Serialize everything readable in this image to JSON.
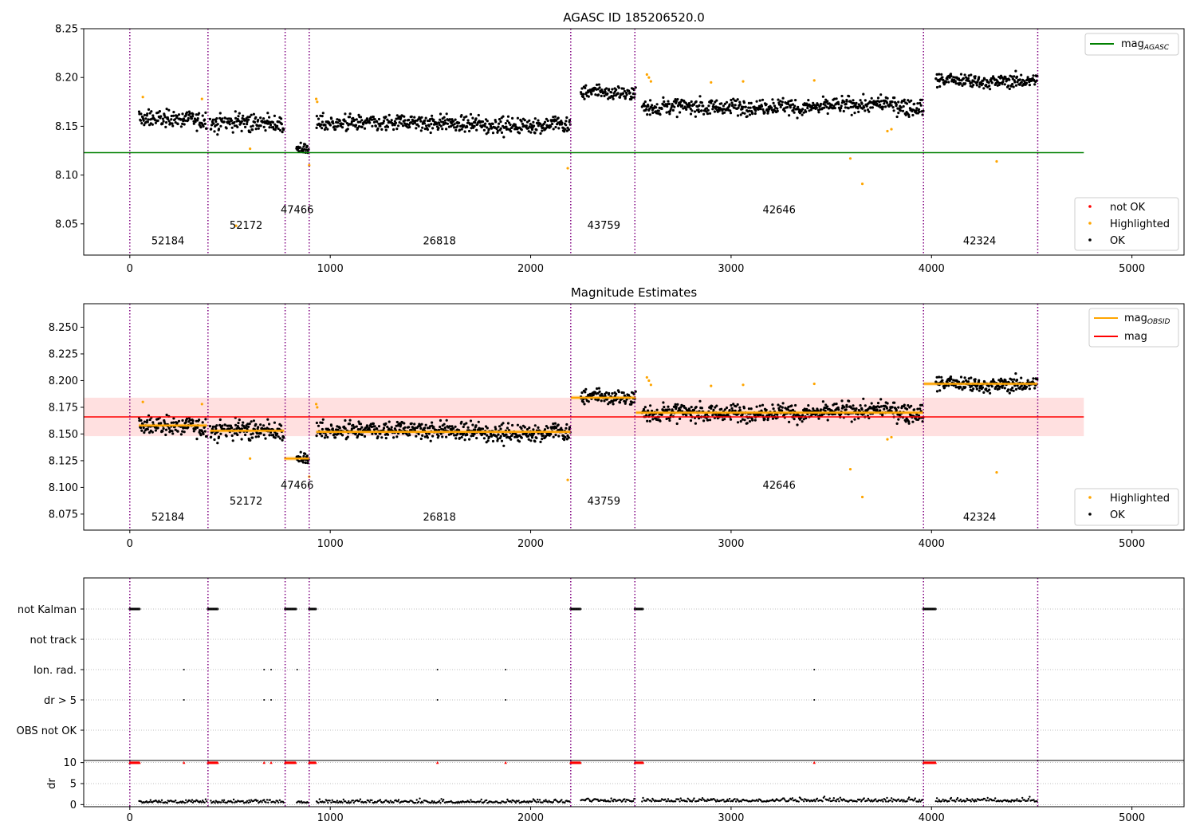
{
  "chart_data": [
    {
      "type": "scatter",
      "title": "AGASC ID 185206520.0",
      "xlim": [
        -230,
        5260
      ],
      "ylim": [
        8.018,
        8.25
      ],
      "xticks": [
        0,
        1000,
        2000,
        3000,
        4000,
        5000
      ],
      "yticks": [
        8.05,
        8.1,
        8.15,
        8.2,
        8.25
      ],
      "ytick_labels": [
        "8.05",
        "8.10",
        "8.15",
        "8.20",
        "8.25"
      ],
      "reference_lines": [
        {
          "name": "mag_AGASC",
          "y": 8.123,
          "x": [
            -230,
            4760
          ],
          "color": "#008000"
        }
      ],
      "legend_top": {
        "label": "mag",
        "sub": "AGASC"
      },
      "legend_bottom": [
        {
          "label": "not OK",
          "color": "#ff0000"
        },
        {
          "label": "Highlighted",
          "color": "#ffa500"
        },
        {
          "label": "OK",
          "color": "#000000"
        }
      ],
      "obsid_labels": [
        {
          "text": "52184",
          "x": 190,
          "y": 8.029
        },
        {
          "text": "52172",
          "x": 580,
          "y": 8.045
        },
        {
          "text": "47466",
          "x": 835,
          "y": 8.061
        },
        {
          "text": "26818",
          "x": 1545,
          "y": 8.029
        },
        {
          "text": "43759",
          "x": 2365,
          "y": 8.045
        },
        {
          "text": "42646",
          "x": 3240,
          "y": 8.061
        },
        {
          "text": "42324",
          "x": 4240,
          "y": 8.029
        }
      ],
      "obs_boundaries": [
        0,
        390,
        775,
        895,
        2200,
        2520,
        3960,
        4530
      ],
      "segments": [
        {
          "x": [
            45,
            385
          ],
          "mean": 8.158,
          "spread": 0.007
        },
        {
          "x": [
            400,
            770
          ],
          "mean": 8.153,
          "spread": 0.008
        },
        {
          "x": [
            830,
            895
          ],
          "mean": 8.128,
          "spread": 0.005
        },
        {
          "x": [
            930,
            2200
          ],
          "mean": 8.152,
          "spread": 0.007
        },
        {
          "x": [
            2250,
            2525
          ],
          "mean": 8.184,
          "spread": 0.006
        },
        {
          "x": [
            2555,
            3960
          ],
          "mean": 8.17,
          "spread": 0.007
        },
        {
          "x": [
            4020,
            4530
          ],
          "mean": 8.197,
          "spread": 0.006
        }
      ],
      "highlighted_points": [
        [
          65,
          8.18
        ],
        [
          360,
          8.178
        ],
        [
          530,
          8.048
        ],
        [
          600,
          8.127
        ],
        [
          930,
          8.178
        ],
        [
          935,
          8.175
        ],
        [
          895,
          8.11
        ],
        [
          2185,
          8.107
        ],
        [
          2580,
          8.203
        ],
        [
          2590,
          8.2
        ],
        [
          2600,
          8.196
        ],
        [
          2900,
          8.195
        ],
        [
          3060,
          8.196
        ],
        [
          3415,
          8.197
        ],
        [
          3595,
          8.117
        ],
        [
          3655,
          8.091
        ],
        [
          3780,
          8.145
        ],
        [
          3800,
          8.147
        ],
        [
          4325,
          8.114
        ]
      ]
    },
    {
      "type": "scatter",
      "title": "Magnitude Estimates",
      "xlim": [
        -230,
        5260
      ],
      "ylim": [
        8.06,
        8.272
      ],
      "xticks": [
        0,
        1000,
        2000,
        3000,
        4000,
        5000
      ],
      "yticks": [
        8.075,
        8.1,
        8.125,
        8.15,
        8.175,
        8.2,
        8.225,
        8.25
      ],
      "ytick_labels": [
        "8.075",
        "8.100",
        "8.125",
        "8.150",
        "8.175",
        "8.200",
        "8.225",
        "8.250"
      ],
      "mag_line": {
        "y": 8.166,
        "band": [
          8.148,
          8.184
        ],
        "x": [
          -230,
          4760
        ],
        "color": "#ff0000"
      },
      "mag_obsid": [
        {
          "x": [
            45,
            385
          ],
          "y": 8.158
        },
        {
          "x": [
            400,
            770
          ],
          "y": 8.153
        },
        {
          "x": [
            770,
            895
          ],
          "y": 8.127
        },
        {
          "x": [
            930,
            2200
          ],
          "y": 8.152
        },
        {
          "x": [
            2200,
            2525
          ],
          "y": 8.184
        },
        {
          "x": [
            2525,
            3960
          ],
          "y": 8.17
        },
        {
          "x": [
            3960,
            4530
          ],
          "y": 8.197
        }
      ],
      "legend_top": [
        {
          "label": "mag",
          "sub": "OBSID",
          "color": "#ffa500"
        },
        {
          "label": "mag",
          "sub": "",
          "color": "#ff0000"
        }
      ],
      "legend_bottom": [
        {
          "label": "Highlighted",
          "color": "#ffa500"
        },
        {
          "label": "OK",
          "color": "#000000"
        }
      ],
      "obsid_labels": [
        {
          "text": "52184",
          "x": 190,
          "y": 8.069
        },
        {
          "text": "52172",
          "x": 580,
          "y": 8.084
        },
        {
          "text": "47466",
          "x": 835,
          "y": 8.099
        },
        {
          "text": "26818",
          "x": 1545,
          "y": 8.069
        },
        {
          "text": "43759",
          "x": 2365,
          "y": 8.084
        },
        {
          "text": "42646",
          "x": 3240,
          "y": 8.099
        },
        {
          "text": "42324",
          "x": 4240,
          "y": 8.069
        }
      ]
    },
    {
      "type": "scatter",
      "title": "",
      "xlim": [
        -230,
        5260
      ],
      "flag_rows": [
        "not Kalman",
        "not track",
        "Ion. rad.",
        "dr > 5",
        "OBS not OK"
      ],
      "not_kalman_ranges": [
        [
          0,
          50
        ],
        [
          390,
          440
        ],
        [
          775,
          830
        ],
        [
          895,
          930
        ],
        [
          2200,
          2250
        ],
        [
          2520,
          2560
        ],
        [
          3960,
          4020
        ]
      ],
      "flag_points_x": [
        270,
        670,
        705,
        835,
        1535,
        1875,
        3415
      ],
      "dr_ylim": [
        -0.5,
        10.5
      ],
      "dr_yticks": [
        0,
        5,
        10
      ],
      "dr_ytick_labels": [
        "0",
        "5",
        "10"
      ],
      "dr_ylabel": "dr",
      "xticks": [
        0,
        1000,
        2000,
        3000,
        4000,
        5000
      ],
      "xtick_labels": [
        "0",
        "1000",
        "2000",
        "3000",
        "4000",
        "5000"
      ]
    }
  ],
  "colors": {
    "boundary": "#800080",
    "ok": "#000000",
    "highlighted": "#ffa500",
    "not_ok": "#ff0000",
    "agasc": "#008000",
    "mag": "#ff0000",
    "band": "#ffcccc"
  }
}
